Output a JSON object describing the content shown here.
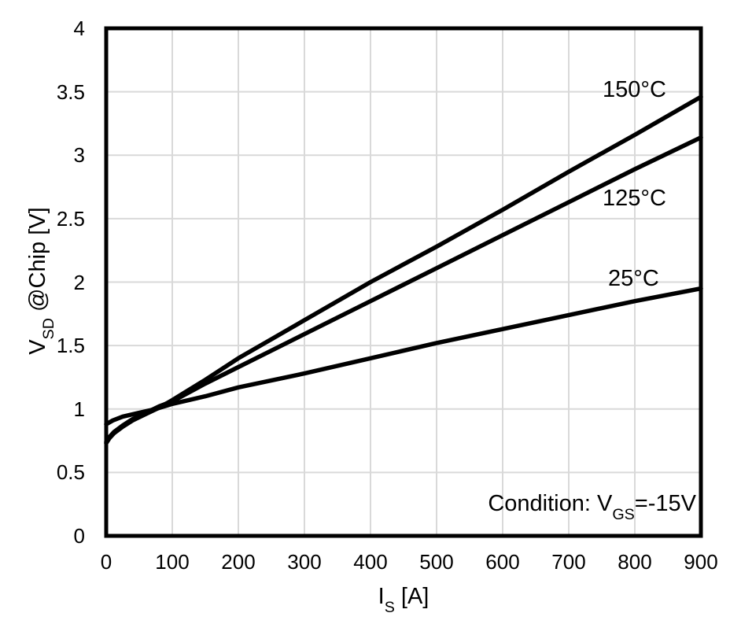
{
  "chart_data": {
    "type": "line",
    "title": "",
    "xlabel": {
      "pre": "I",
      "sub": "S",
      "post": " [A]"
    },
    "ylabel": {
      "pre": "V",
      "sub": "SD",
      "post": " @Chip [V]"
    },
    "xlim": [
      0,
      900
    ],
    "ylim": [
      0,
      4
    ],
    "x_ticks": [
      "0",
      "100",
      "200",
      "300",
      "400",
      "500",
      "600",
      "700",
      "800",
      "900"
    ],
    "y_ticks": [
      "0",
      "0.5",
      "1",
      "1.5",
      "2",
      "2.5",
      "3",
      "3.5",
      "4"
    ],
    "grid": true,
    "legend_position": "inline-labels",
    "annotation": {
      "pre": "Condition: V",
      "sub": "GS",
      "post": "=-15V"
    },
    "line_color": "#000000",
    "grid_color": "#d9d9d9",
    "border_color": "#000000",
    "series": [
      {
        "name": "150c",
        "label": "150°C",
        "x": [
          0,
          5,
          12,
          25,
          40,
          60,
          80,
          100,
          150,
          200,
          250,
          300,
          400,
          500,
          600,
          700,
          800,
          900
        ],
        "y": [
          0.73,
          0.77,
          0.81,
          0.86,
          0.91,
          0.96,
          1.01,
          1.07,
          1.23,
          1.4,
          1.55,
          1.7,
          2.0,
          2.28,
          2.57,
          2.87,
          3.16,
          3.46
        ]
      },
      {
        "name": "125c",
        "label": "125°C",
        "x": [
          0,
          5,
          12,
          25,
          40,
          60,
          80,
          100,
          150,
          200,
          250,
          300,
          400,
          500,
          600,
          700,
          800,
          900
        ],
        "y": [
          0.74,
          0.78,
          0.82,
          0.87,
          0.92,
          0.97,
          1.02,
          1.06,
          1.2,
          1.33,
          1.46,
          1.59,
          1.85,
          2.11,
          2.37,
          2.63,
          2.89,
          3.14
        ]
      },
      {
        "name": "25c",
        "label": "25°C",
        "x": [
          0,
          10,
          25,
          50,
          75,
          100,
          150,
          200,
          300,
          400,
          500,
          600,
          700,
          800,
          900
        ],
        "y": [
          0.88,
          0.91,
          0.94,
          0.97,
          1.0,
          1.04,
          1.1,
          1.17,
          1.28,
          1.4,
          1.52,
          1.63,
          1.74,
          1.85,
          1.95
        ]
      }
    ]
  }
}
